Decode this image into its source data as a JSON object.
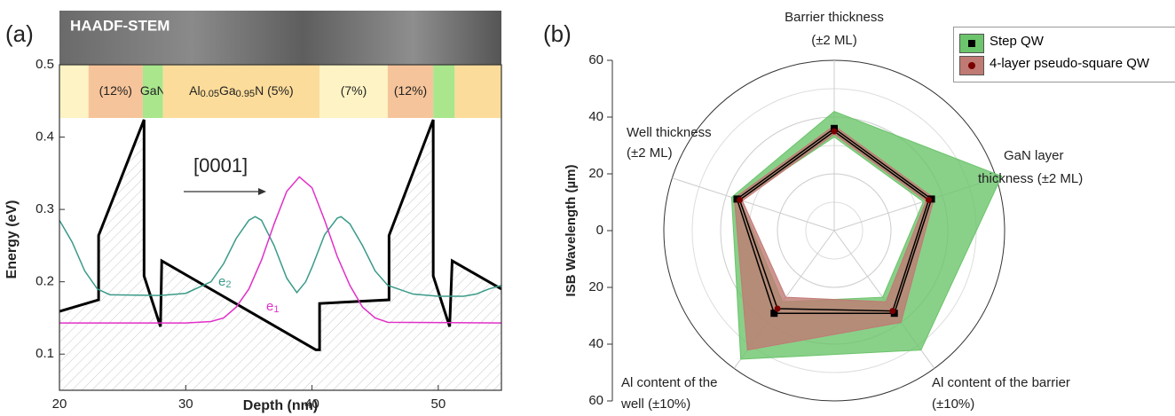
{
  "chart_data": [
    {
      "type": "line",
      "panel": "(a)",
      "image_label": "HAADF-STEM",
      "annotation": "[0001]",
      "xlabel": "Depth (nm)",
      "ylabel": "Energy (eV)",
      "xlim": [
        20,
        55
      ],
      "ylim": [
        0.05,
        0.5
      ],
      "xticks": [
        20,
        30,
        40,
        50
      ],
      "yticks": [
        0.1,
        0.2,
        0.3,
        0.4,
        0.5
      ],
      "layers": [
        {
          "x": [
            20,
            22.3
          ],
          "color": "#fdf3c4"
        },
        {
          "x": [
            22.3,
            26.6
          ],
          "color": "#f6c49a",
          "label": [
            {
              "text": "(12%)"
            }
          ]
        },
        {
          "x": [
            26.6,
            28.2
          ],
          "color": "#a9e68c",
          "label": [
            {
              "text": "GaN"
            }
          ]
        },
        {
          "x": [
            28.2,
            40.6
          ],
          "color": "#fbdc9a",
          "label": [
            {
              "text": "Al"
            },
            {
              "text": "0.05",
              "sub": true
            },
            {
              "text": "Ga"
            },
            {
              "text": "0.95",
              "sub": true
            },
            {
              "text": "N  (5%)"
            }
          ]
        },
        {
          "x": [
            40.6,
            46
          ],
          "color": "#fdf3c4",
          "label": [
            {
              "text": "(7%)"
            }
          ]
        },
        {
          "x": [
            46,
            49.6
          ],
          "color": "#f6c49a",
          "label": [
            {
              "text": "(12%)"
            }
          ]
        },
        {
          "x": [
            49.6,
            51.3
          ],
          "color": "#a9e68c"
        },
        {
          "x": [
            51.3,
            55
          ],
          "color": "#fbdc9a"
        }
      ],
      "series": [
        {
          "color": "#000000",
          "hatch": true,
          "x": [
            20,
            23.1,
            23.1,
            26.7,
            26.7,
            28.0,
            28.1,
            40.3,
            40.6,
            40.6,
            46.1,
            46.1,
            49.6,
            49.6,
            50.9,
            51.1,
            55
          ],
          "values": [
            0.159,
            0.175,
            0.264,
            0.424,
            0.208,
            0.138,
            0.229,
            0.106,
            0.106,
            0.17,
            0.175,
            0.264,
            0.424,
            0.208,
            0.138,
            0.229,
            0.19
          ]
        },
        {
          "color": "#3a9a88",
          "label": [
            {
              "text": "e"
            },
            {
              "text": "2",
              "sub": true
            }
          ],
          "x": [
            20,
            21,
            22,
            23,
            24,
            28,
            30,
            32,
            33,
            34,
            35,
            35.5,
            36,
            37,
            38,
            38.8,
            39.5,
            40,
            41,
            42,
            42.3,
            43,
            44,
            45,
            46,
            48,
            50,
            52,
            53,
            54,
            55
          ],
          "values": [
            0.285,
            0.255,
            0.215,
            0.19,
            0.182,
            0.181,
            0.184,
            0.2,
            0.225,
            0.26,
            0.285,
            0.29,
            0.285,
            0.25,
            0.205,
            0.185,
            0.2,
            0.22,
            0.265,
            0.288,
            0.29,
            0.28,
            0.25,
            0.215,
            0.195,
            0.183,
            0.18,
            0.18,
            0.183,
            0.19,
            0.195
          ]
        },
        {
          "color": "#e030c8",
          "label": [
            {
              "text": "e"
            },
            {
              "text": "1",
              "sub": true
            }
          ],
          "x": [
            20,
            30,
            32,
            33,
            34,
            35,
            36,
            37,
            38,
            39,
            40,
            41,
            42,
            43,
            44,
            45,
            46,
            55
          ],
          "values": [
            0.143,
            0.143,
            0.145,
            0.15,
            0.165,
            0.19,
            0.23,
            0.28,
            0.325,
            0.345,
            0.33,
            0.285,
            0.235,
            0.195,
            0.165,
            0.15,
            0.144,
            0.143
          ]
        }
      ]
    },
    {
      "type": "radar",
      "panel": "(b)",
      "ylabel": "ISB Wavelength (µm)",
      "legend": "upper right",
      "axes": [
        [
          "Barrier thickness",
          "(±2 ML)"
        ],
        [
          "GaN layer",
          "thickness (±2 ML)"
        ],
        [
          "Al content of the barrier",
          "(±10%)"
        ],
        [
          "Al content of the",
          "well (±10%)"
        ],
        [
          "Well thickness",
          "(±2 ML)"
        ]
      ],
      "ylim": [
        0,
        60
      ],
      "yticks": [
        0,
        20,
        40,
        60
      ],
      "minor_yticks": [
        10,
        30,
        50
      ],
      "series": [
        {
          "name": "Step QW",
          "color": "#6cc46c",
          "marker": "square",
          "marker_color": "#000000",
          "values": [
            36,
            36,
            36,
            36,
            36
          ],
          "low": [
            33,
            33,
            29,
            31,
            35
          ],
          "high": [
            42,
            62,
            52,
            56,
            38
          ]
        },
        {
          "name": "4-layer pseudo-square QW",
          "color": "#c07a74",
          "marker": "circle",
          "marker_color": "#7a0000",
          "values": [
            35,
            35,
            35,
            34,
            35
          ],
          "low": [
            34,
            34,
            31,
            29,
            34
          ],
          "high": [
            37,
            37,
            40,
            52,
            37
          ]
        }
      ]
    }
  ]
}
